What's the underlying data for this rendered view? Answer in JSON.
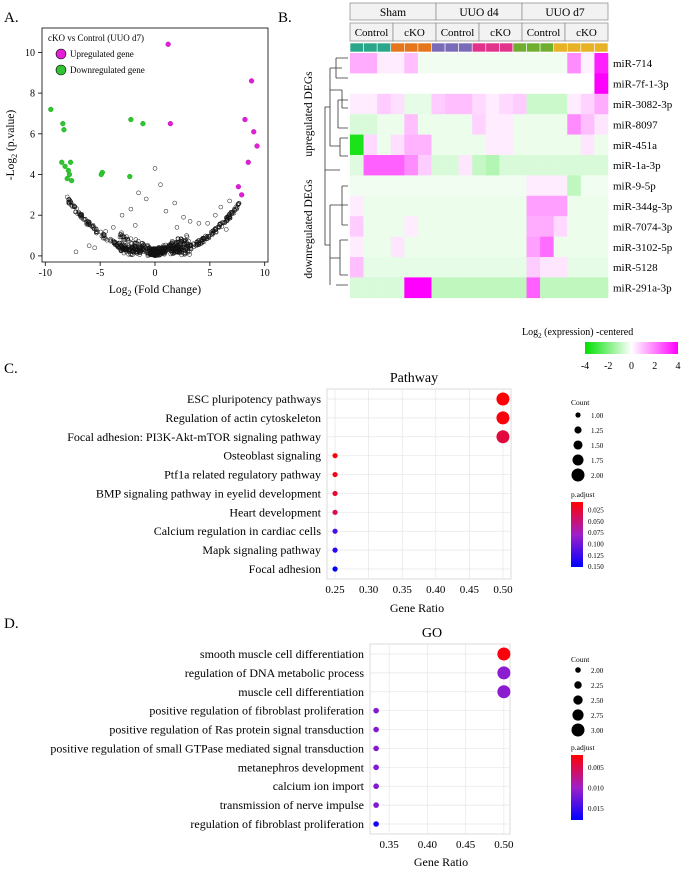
{
  "panel_labels": [
    "A.",
    "B.",
    "C.",
    "D."
  ],
  "chart_data": [
    {
      "id": "volcano",
      "type": "scatter",
      "legend_title": "cKO vs Control (UUO d7)",
      "legend_entries": [
        {
          "label": "Upregulated gene",
          "color": "#e21fd6"
        },
        {
          "label": "Downregulated gene",
          "color": "#33c233"
        }
      ],
      "xlabel": "Log",
      "xlabel_sub": "2",
      "xlabel_rest": " (Fold Change)",
      "ylabel": "-Log",
      "ylabel_sub": "2",
      "ylabel_rest": " (p.value)",
      "xlim": [
        -10.3,
        10.3
      ],
      "ylim": [
        -0.3,
        11.2
      ],
      "xticks": [
        -10,
        -5,
        0,
        5,
        10
      ],
      "yticks": [
        0,
        2,
        4,
        6,
        8,
        10
      ],
      "up_points": [
        [
          1.2,
          10.4
        ],
        [
          8.8,
          8.6
        ],
        [
          1.4,
          6.5
        ],
        [
          8.2,
          6.7
        ],
        [
          9.0,
          6.1
        ],
        [
          9.3,
          5.4
        ],
        [
          8.5,
          4.6
        ],
        [
          7.6,
          3.4
        ],
        [
          7.9,
          3.0
        ]
      ],
      "down_points": [
        [
          -9.5,
          7.2
        ],
        [
          -8.4,
          6.5
        ],
        [
          -8.3,
          6.2
        ],
        [
          -1.1,
          6.5
        ],
        [
          -2.2,
          6.7
        ],
        [
          -8.5,
          4.6
        ],
        [
          -8.2,
          4.4
        ],
        [
          -7.7,
          4.6
        ],
        [
          -7.9,
          4.2
        ],
        [
          -7.8,
          4.0
        ],
        [
          -7.6,
          3.7
        ],
        [
          -8.0,
          3.8
        ],
        [
          -4.8,
          4.1
        ],
        [
          -4.9,
          4.0
        ],
        [
          -2.3,
          3.9
        ]
      ],
      "scattered_grey": [
        [
          0.0,
          4.3
        ],
        [
          -1.5,
          3.1
        ],
        [
          0.5,
          3.5
        ],
        [
          1.8,
          2.6
        ],
        [
          2.6,
          1.9
        ],
        [
          -2.2,
          2.3
        ],
        [
          -3.0,
          2.0
        ],
        [
          3.2,
          1.7
        ],
        [
          4.0,
          1.6
        ],
        [
          -3.8,
          1.4
        ],
        [
          -4.5,
          1.2
        ],
        [
          4.8,
          1.6
        ],
        [
          5.5,
          2.0
        ],
        [
          6.0,
          2.4
        ],
        [
          6.8,
          2.7
        ],
        [
          -0.8,
          2.8
        ],
        [
          1.0,
          2.2
        ],
        [
          2.0,
          1.4
        ],
        [
          -1.8,
          1.5
        ],
        [
          -6.0,
          0.5
        ],
        [
          -5.5,
          0.4
        ],
        [
          3.5,
          0.6
        ],
        [
          6.5,
          1.3
        ],
        [
          7.2,
          2.1
        ],
        [
          -7.2,
          0.2
        ]
      ]
    },
    {
      "id": "heatmap",
      "type": "heatmap",
      "groups": [
        "Sham",
        "UUO d4",
        "UUO d7"
      ],
      "subgroups": [
        "Control",
        "cKO",
        "Control",
        "cKO",
        "Control",
        "cKO"
      ],
      "subgroup_colors": [
        "#2aa78a",
        "#e5761c",
        "#7a6bb8",
        "#e1338b",
        "#6fae2e",
        "#e7b225"
      ],
      "row_labels": [
        "miR-714",
        "miR-7f-1-3p",
        "miR-3082-3p",
        "miR-8097",
        "miR-451a",
        "miR-1a-3p",
        "miR-9-5p",
        "miR-344g-3p",
        "miR-7074-3p",
        "miR-3102-5p",
        "miR-5128",
        "miR-291a-3p"
      ],
      "row_groups": [
        "upregulated DEGs",
        "downregulated DEGs"
      ],
      "values": [
        [
          1.3,
          1.3,
          0.3,
          0.3,
          1.0,
          -0.2,
          -0.2,
          -0.2,
          -0.2,
          -0.2,
          -0.2,
          -0.2,
          -0.2,
          -0.2,
          -0.2,
          -0.2,
          1.8,
          0.2,
          3.5
        ],
        [
          0.0,
          0.0,
          0.0,
          0.0,
          0.0,
          0.0,
          0.0,
          0.0,
          0.0,
          0.0,
          0.0,
          0.0,
          0.0,
          0.0,
          0.0,
          0.0,
          0.0,
          0.0,
          4.0
        ],
        [
          0.3,
          0.3,
          0.8,
          0.5,
          -0.4,
          -0.4,
          0.8,
          1.0,
          1.0,
          0.6,
          0.3,
          0.6,
          0.8,
          -0.8,
          -0.8,
          -0.8,
          0.3,
          0.7,
          1.3
        ],
        [
          -0.6,
          -0.6,
          -0.3,
          -0.3,
          1.0,
          -0.3,
          -0.3,
          -0.3,
          -0.3,
          0.7,
          0.3,
          0.3,
          -0.3,
          -0.3,
          -0.3,
          -0.3,
          1.8,
          1.0,
          0.4
        ],
        [
          -3.6,
          0.6,
          -0.3,
          0.5,
          1.2,
          1.2,
          -0.3,
          -0.3,
          -0.3,
          -0.3,
          0.3,
          0.3,
          -0.3,
          -0.3,
          -0.3,
          -0.3,
          -0.3,
          0.4,
          -0.3
        ],
        [
          -0.5,
          2.5,
          2.5,
          2.5,
          1.8,
          0.8,
          -0.6,
          -0.6,
          0.4,
          -0.9,
          -1.2,
          -0.6,
          -0.6,
          -0.6,
          -0.6,
          -0.6,
          -0.6,
          -0.6,
          -0.6
        ],
        [
          -0.2,
          -0.2,
          -0.2,
          -0.2,
          -0.2,
          -0.2,
          -0.2,
          -0.2,
          -0.2,
          -0.2,
          -0.2,
          -0.2,
          -0.2,
          0.3,
          0.3,
          0.3,
          -1.0,
          -0.2,
          -0.2
        ],
        [
          0.3,
          -0.3,
          -0.3,
          -0.3,
          -0.3,
          -0.3,
          -0.3,
          -0.3,
          -0.3,
          -0.3,
          -0.3,
          -0.3,
          -0.3,
          1.5,
          1.5,
          1.5,
          -0.3,
          -0.3,
          -0.3
        ],
        [
          0.8,
          -0.3,
          -0.3,
          -0.3,
          0.3,
          -0.3,
          -0.3,
          -0.3,
          -0.3,
          -0.3,
          -0.3,
          -0.3,
          -0.3,
          1.3,
          1.3,
          0.6,
          -0.3,
          -0.3,
          -0.3
        ],
        [
          0.3,
          -0.3,
          -0.3,
          0.4,
          -0.3,
          -0.3,
          -0.3,
          -0.3,
          -0.3,
          -0.3,
          -0.3,
          -0.3,
          -0.3,
          1.5,
          2.3,
          -0.3,
          -0.3,
          -0.3,
          -0.3
        ],
        [
          1.0,
          -0.4,
          -0.4,
          -0.4,
          -0.4,
          -0.4,
          -0.4,
          -0.4,
          -0.4,
          -0.4,
          -0.4,
          -0.4,
          -0.4,
          0.8,
          0.4,
          0.4,
          -0.4,
          -0.4,
          -0.4
        ],
        [
          -0.6,
          -0.6,
          -0.6,
          -0.6,
          4.0,
          4.0,
          -1.0,
          -1.0,
          -1.0,
          -1.0,
          -1.0,
          -1.0,
          -1.0,
          2.5,
          -1.0,
          -1.0,
          -1.0,
          -1.0,
          -1.0
        ]
      ],
      "colorbar_title": "Log",
      "colorbar_title_sub": "2",
      "colorbar_title_rest": " (expression) -centered",
      "colorbar_ticks": [
        -4,
        -2,
        0,
        2,
        4
      ],
      "colorbar_range": [
        -4,
        4
      ]
    },
    {
      "id": "pathway",
      "type": "scatter",
      "title": "Pathway",
      "xlabel": "Gene Ratio",
      "xlim": [
        0.238,
        0.512
      ],
      "xticks": [
        0.25,
        0.3,
        0.35,
        0.4,
        0.45,
        0.5
      ],
      "xtick_labels": [
        "0.25",
        "0.30",
        "0.35",
        "0.40",
        "0.45",
        "0.50"
      ],
      "categories": [
        "ESC pluripotency pathways",
        "Regulation of actin cytoskeleton",
        "Focal adhesion: PI3K-Akt-mTOR signaling pathway",
        "Osteoblast signaling",
        "Ptf1a related regulatory pathway",
        "BMP signaling pathway in eyelid development",
        "Heart development",
        "Calcium regulation in cardiac cells",
        "Mapk signaling pathway",
        "Focal adhesion"
      ],
      "gene_ratio": [
        0.5,
        0.5,
        0.5,
        0.25,
        0.25,
        0.25,
        0.25,
        0.25,
        0.25,
        0.25
      ],
      "count": [
        2,
        2,
        2,
        1,
        1,
        1,
        1,
        1,
        1,
        1
      ],
      "p_adjust": [
        0.01,
        0.012,
        0.03,
        0.012,
        0.018,
        0.025,
        0.035,
        0.12,
        0.135,
        0.152
      ],
      "size_legend_title": "Count",
      "size_legend": [
        1.0,
        1.25,
        1.5,
        1.75,
        2.0
      ],
      "size_legend_labels": [
        "1.00",
        "1.25",
        "1.50",
        "1.75",
        "2.00"
      ],
      "size_range": [
        1,
        2
      ],
      "color_legend_title": "p.adjust",
      "color_range": [
        0.008,
        0.152
      ],
      "color_ticks": [
        0.025,
        0.05,
        0.075,
        0.1,
        0.125,
        0.15
      ],
      "color_tick_labels": [
        "0.025",
        "0.050",
        "0.075",
        "0.100",
        "0.125",
        "0.150"
      ]
    },
    {
      "id": "go",
      "type": "scatter",
      "title": "GO",
      "xlabel": "Gene Ratio",
      "xlim": [
        0.325,
        0.508
      ],
      "xticks": [
        0.35,
        0.4,
        0.45,
        0.5
      ],
      "xtick_labels": [
        "0.35",
        "0.40",
        "0.45",
        "0.50"
      ],
      "categories": [
        "smooth muscle cell differentiation",
        "regulation of DNA metabolic process",
        "muscle cell differentiation",
        "positive regulation of fibroblast proliferation",
        "positive regulation of Ras protein signal transduction",
        "positive regulation of small GTPase mediated signal transduction",
        "metanephros development",
        "calcium ion import",
        "transmission of nerve impulse",
        "regulation of fibroblast proliferation"
      ],
      "gene_ratio": [
        0.5,
        0.5,
        0.5,
        0.333,
        0.333,
        0.333,
        0.333,
        0.333,
        0.333,
        0.333
      ],
      "count": [
        3,
        3,
        3,
        2,
        2,
        2,
        2,
        2,
        2,
        2
      ],
      "p_adjust": [
        0.0025,
        0.011,
        0.011,
        0.0115,
        0.0115,
        0.0115,
        0.0115,
        0.0115,
        0.0115,
        0.017
      ],
      "size_legend_title": "Count",
      "size_legend": [
        2.0,
        2.25,
        2.5,
        2.75,
        3.0
      ],
      "size_legend_labels": [
        "2.00",
        "2.25",
        "2.50",
        "2.75",
        "3.00"
      ],
      "size_range": [
        2,
        3
      ],
      "color_legend_title": "p.adjust",
      "color_range": [
        0.002,
        0.018
      ],
      "color_ticks": [
        0.005,
        0.01,
        0.015
      ],
      "color_tick_labels": [
        "0.005",
        "0.010",
        "0.015"
      ]
    }
  ]
}
